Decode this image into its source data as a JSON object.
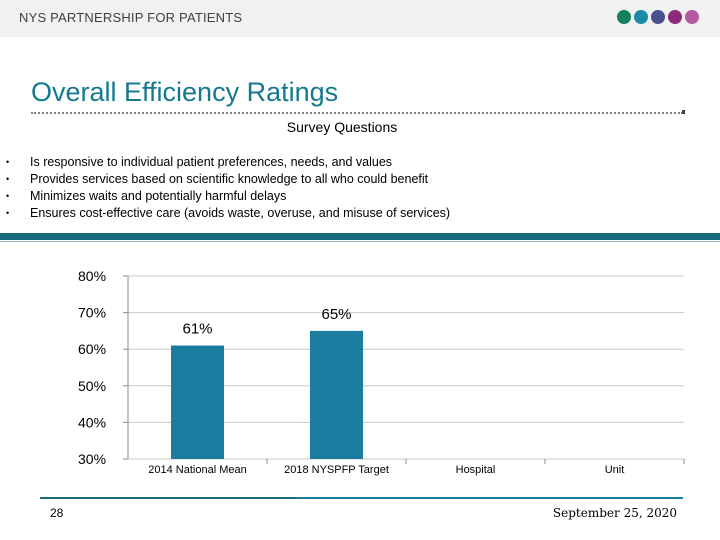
{
  "header": {
    "org_name": "NYS PARTNERSHIP FOR PATIENTS",
    "dot_colors": [
      "#137f5b",
      "#1a8aa6",
      "#4a4f8e",
      "#8b2a76",
      "#b45aa0"
    ]
  },
  "slide": {
    "title": "Overall Efficiency Ratings",
    "subtitle": "Survey Questions",
    "bullets": [
      "Is responsive to individual patient preferences, needs, and values",
      "Provides services based on scientific knowledge to all who could benefit",
      "Minimizes waits and potentially harmful delays",
      "Ensures cost-effective care (avoids waste, overuse, and misuse of services)"
    ],
    "bullet_marker": "•"
  },
  "chart_data": {
    "type": "bar",
    "categories": [
      "2014 National Mean",
      "2018 NYSPFP Target",
      "Hospital",
      "Unit"
    ],
    "values": [
      61,
      65,
      null,
      null
    ],
    "data_labels": [
      "61%",
      "65%",
      "",
      ""
    ],
    "ylim": [
      30,
      80
    ],
    "yticks": [
      "30%",
      "40%",
      "50%",
      "60%",
      "70%",
      "80%"
    ],
    "grid": true,
    "bar_color": "#1a7da0",
    "title": "",
    "xlabel": "",
    "ylabel": ""
  },
  "footer": {
    "page_number": "28",
    "date": "September 25, 2020"
  },
  "colors": {
    "accent_teal": "#157a8f",
    "band": "#1a6a7d",
    "footer_line_left": "#1a6a7d",
    "footer_line_right": "#1a7da0"
  }
}
